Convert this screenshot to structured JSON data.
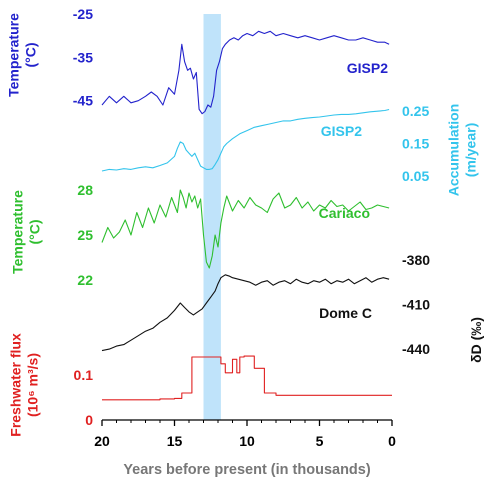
{
  "chart_data": {
    "type": "line",
    "xlabel": "Years before present (in thousands)",
    "xlim": [
      20,
      0
    ],
    "x_ticks": [
      "20",
      "15",
      "10",
      "5",
      "0"
    ],
    "x_tick_values": [
      20,
      15,
      10,
      5,
      0
    ],
    "highlight_band": {
      "x_start": 13.0,
      "x_end": 11.8,
      "color": "#bfe3fa"
    },
    "panels": [
      {
        "id": "gisp2_temp",
        "series_label": "GISP2",
        "axis_label_lines": [
          "Temperature",
          "(°C)"
        ],
        "axis_side": "left",
        "color": "#2323cc",
        "ylim": [
          -49,
          -25
        ],
        "ticks": [
          "-25",
          "-35",
          "-45"
        ],
        "tick_values": [
          -25,
          -35,
          -45
        ],
        "x": [
          20,
          19.5,
          19,
          18.5,
          18,
          17.5,
          17,
          16.6,
          16.2,
          15.8,
          15.4,
          15.0,
          14.7,
          14.5,
          14.3,
          14.1,
          13.9,
          13.7,
          13.5,
          13.3,
          13.1,
          12.9,
          12.7,
          12.5,
          12.3,
          12.1,
          11.9,
          11.7,
          11.5,
          11.2,
          10.9,
          10.6,
          10.3,
          10.0,
          9.6,
          9.2,
          8.8,
          8.4,
          8.0,
          7.5,
          7.0,
          6.5,
          6.0,
          5.5,
          5.0,
          4.5,
          4.0,
          3.5,
          3.0,
          2.5,
          2.0,
          1.5,
          1.0,
          0.5,
          0.2
        ],
        "y": [
          -46,
          -44,
          -45.5,
          -44,
          -45.5,
          -45,
          -44,
          -43,
          -44,
          -46,
          -42,
          -43.5,
          -38,
          -32,
          -36,
          -38,
          -37.5,
          -40,
          -38.5,
          -47,
          -48,
          -47.5,
          -46,
          -46.5,
          -44,
          -38,
          -36,
          -33,
          -32,
          -31,
          -30.5,
          -31,
          -30,
          -29.5,
          -30,
          -29,
          -29.5,
          -29,
          -30,
          -29.5,
          -30,
          -30.5,
          -30,
          -30.5,
          -31,
          -30.5,
          -30,
          -30.5,
          -31,
          -31,
          -30.5,
          -31,
          -31.5,
          -31.5,
          -32
        ]
      },
      {
        "id": "gisp2_accum",
        "series_label": "GISP2",
        "axis_label_lines": [
          "Accumulation",
          "(m/year)"
        ],
        "axis_side": "right",
        "color": "#33c4ec",
        "ylim": [
          0.0,
          0.3
        ],
        "ticks": [
          "0.25",
          "0.15",
          "0.05"
        ],
        "tick_values": [
          0.25,
          0.15,
          0.05
        ],
        "x": [
          20,
          19.5,
          19,
          18.5,
          18,
          17.5,
          17,
          16.5,
          16.0,
          15.5,
          15.0,
          14.8,
          14.6,
          14.4,
          14.2,
          14.0,
          13.8,
          13.6,
          13.4,
          13.2,
          13.0,
          12.8,
          12.6,
          12.4,
          12.2,
          12.0,
          11.8,
          11.6,
          11.4,
          11.0,
          10.5,
          10.0,
          9.5,
          9.0,
          8.5,
          8.0,
          7.5,
          7.0,
          6.5,
          6.0,
          5.5,
          5.0,
          4.5,
          4.0,
          3.5,
          3.0,
          2.5,
          2.0,
          1.5,
          1.0,
          0.5,
          0.2
        ],
        "y": [
          0.065,
          0.07,
          0.068,
          0.072,
          0.07,
          0.075,
          0.078,
          0.075,
          0.082,
          0.09,
          0.11,
          0.135,
          0.155,
          0.15,
          0.13,
          0.12,
          0.11,
          0.12,
          0.1,
          0.08,
          0.075,
          0.07,
          0.07,
          0.072,
          0.085,
          0.1,
          0.12,
          0.14,
          0.15,
          0.165,
          0.18,
          0.19,
          0.2,
          0.205,
          0.21,
          0.215,
          0.22,
          0.22,
          0.225,
          0.228,
          0.23,
          0.232,
          0.235,
          0.238,
          0.24,
          0.24,
          0.242,
          0.245,
          0.248,
          0.25,
          0.252,
          0.255
        ]
      },
      {
        "id": "cariaco_temp",
        "series_label": "Cariaco",
        "axis_label_lines": [
          "Temperature",
          "(°C)"
        ],
        "axis_side": "left",
        "color": "#2fbf2f",
        "ylim": [
          21,
          29
        ],
        "ticks": [
          "28",
          "25",
          "22"
        ],
        "tick_values": [
          28,
          25,
          22
        ],
        "x": [
          20,
          19.6,
          19.2,
          18.8,
          18.4,
          18.0,
          17.6,
          17.2,
          16.8,
          16.4,
          16.0,
          15.6,
          15.2,
          14.8,
          14.6,
          14.4,
          14.2,
          14.0,
          13.8,
          13.6,
          13.4,
          13.2,
          13.0,
          12.8,
          12.6,
          12.4,
          12.2,
          12.0,
          11.8,
          11.6,
          11.4,
          11.0,
          10.6,
          10.2,
          9.8,
          9.4,
          9.0,
          8.6,
          8.2,
          7.8,
          7.4,
          7.0,
          6.6,
          6.2,
          5.8,
          5.4,
          5.0,
          4.6,
          4.2,
          3.8,
          3.4,
          3.0,
          2.6,
          2.2,
          1.8,
          1.4,
          1.0,
          0.6,
          0.2
        ],
        "y": [
          24.5,
          25.5,
          24.8,
          25.2,
          26,
          25,
          26.5,
          25.5,
          26.8,
          25.8,
          27,
          26.2,
          27.5,
          26.5,
          28,
          27.5,
          26.8,
          27.8,
          27.2,
          27.6,
          26.8,
          27.4,
          25,
          23.2,
          22.8,
          23.6,
          25,
          24.2,
          25.8,
          26.8,
          27.6,
          26.6,
          27.3,
          26.8,
          27.5,
          27,
          26.8,
          26.5,
          27.4,
          27.8,
          26.8,
          27,
          27.5,
          26.8,
          27.2,
          26.6,
          27,
          26.8,
          27.3,
          26.9,
          27,
          26.6,
          26.9,
          27.2,
          26.7,
          26.8,
          27,
          26.9,
          26.8
        ]
      },
      {
        "id": "domec_dD",
        "series_label": "Dome C",
        "axis_label_lines": [
          "δD (‰)"
        ],
        "axis_side": "right",
        "color": "#111111",
        "ylim": [
          -446,
          -372
        ],
        "ticks": [
          "-380",
          "-410",
          "-440"
        ],
        "tick_values": [
          -380,
          -410,
          -440
        ],
        "x": [
          20,
          19.5,
          19,
          18.5,
          18,
          17.5,
          17,
          16.5,
          16.0,
          15.5,
          15.0,
          14.6,
          14.3,
          14.0,
          13.7,
          13.4,
          13.1,
          12.8,
          12.5,
          12.2,
          12.0,
          11.8,
          11.5,
          11.2,
          11.0,
          10.6,
          10.2,
          9.8,
          9.4,
          9.0,
          8.6,
          8.2,
          7.8,
          7.4,
          7.0,
          6.6,
          6.2,
          5.8,
          5.4,
          5.0,
          4.6,
          4.2,
          3.8,
          3.4,
          3.0,
          2.6,
          2.2,
          1.8,
          1.4,
          1.0,
          0.6,
          0.2
        ],
        "y": [
          -441,
          -440,
          -438,
          -437,
          -434,
          -431,
          -428,
          -426,
          -422,
          -419,
          -414,
          -409,
          -412,
          -415,
          -417,
          -415,
          -413,
          -409,
          -405,
          -401,
          -396,
          -392,
          -390,
          -391,
          -392,
          -393,
          -394,
          -395,
          -397,
          -395,
          -394,
          -397,
          -395,
          -394,
          -396,
          -393,
          -395,
          -396,
          -394,
          -395,
          -393,
          -396,
          -394,
          -395,
          -393,
          -396,
          -394,
          -392,
          -395,
          -393,
          -392,
          -393
        ]
      },
      {
        "id": "freshwater_flux",
        "series_label": "",
        "axis_label_lines": [
          "Freshwater flux",
          "(10⁶ m³/s)"
        ],
        "axis_side": "left",
        "color": "#e02020",
        "ylim": [
          0,
          0.16
        ],
        "ticks": [
          "0.1",
          "0"
        ],
        "tick_values": [
          0.1,
          0
        ],
        "step": true,
        "x": [
          20,
          16.0,
          16.0,
          15.0,
          15.0,
          14.5,
          14.5,
          13.8,
          13.8,
          13.0,
          13.0,
          11.8,
          11.8,
          11.5,
          11.5,
          11.0,
          11.0,
          10.7,
          10.7,
          10.5,
          10.5,
          10.2,
          10.2,
          9.5,
          9.5,
          8.8,
          8.8,
          8.0,
          8.0,
          0
        ],
        "y": [
          0.045,
          0.045,
          0.047,
          0.047,
          0.048,
          0.048,
          0.06,
          0.06,
          0.14,
          0.14,
          0.14,
          0.14,
          0.125,
          0.125,
          0.105,
          0.105,
          0.135,
          0.135,
          0.105,
          0.105,
          0.14,
          0.14,
          0.142,
          0.142,
          0.115,
          0.115,
          0.06,
          0.06,
          0.055,
          0.055
        ]
      }
    ]
  }
}
